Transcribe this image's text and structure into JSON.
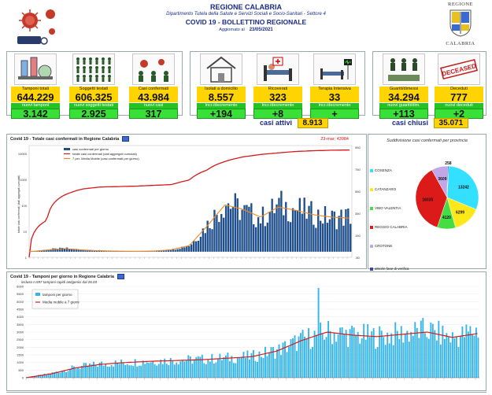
{
  "header": {
    "region": "REGIONE CALABRIA",
    "department": "Dipartimento Tutela della Salute e Servizi Sociali e Socio-Sanitari - Settore 4",
    "bulletin": "COVID 19 - BOLLETTINO REGIONALE",
    "updated_label": "Aggiornato al",
    "updated_date": "23/05/2021",
    "logo_line1": "REGIONE",
    "logo_line2": "CALABRIA"
  },
  "kpis": [
    {
      "label": "Tamponi totali",
      "value": "644.229",
      "delta_label": "nuovi tamponi",
      "delta_value": "3.142",
      "icon": "lab-test-icon"
    },
    {
      "label": "Soggetti testati",
      "value": "606.325",
      "delta_label": "nuovi soggetti testati",
      "delta_value": "2.925",
      "icon": "people-grid-icon"
    },
    {
      "label": "Casi confermati",
      "value": "43.984",
      "delta_label": "nuovi casi",
      "delta_value": "317",
      "icon": "virus-people-icon"
    },
    {
      "label": "Isolati a domicilio",
      "value": "8.557",
      "delta_label": "Incr./decremento",
      "delta_value": "+194",
      "icon": "house-icon"
    },
    {
      "label": "Ricoverati",
      "value": "323",
      "delta_label": "Incr./decremento",
      "delta_value": "+8",
      "icon": "hospital-bed-icon"
    },
    {
      "label": "Terapia Intensiva",
      "value": "33",
      "delta_label": "Incr./decremento",
      "delta_value": "+",
      "icon": "icu-icon"
    },
    {
      "label": "Guariti/dimessi",
      "value": "34.294",
      "delta_label": "nuovi guariti/dim.",
      "delta_value": "+113",
      "icon": "recovered-icon"
    },
    {
      "label": "Deceduti",
      "value": "777",
      "delta_label": "nuovi deceduti",
      "delta_value": "+2",
      "icon": "deceased-stamp-icon"
    }
  ],
  "deceased_stamp": "DECEASED",
  "totals": {
    "active_label": "casi attivi",
    "active_value": "8.913",
    "closed_label": "casi chiusi",
    "closed_value": "35.071"
  },
  "colors": {
    "yellow": "#ffd400",
    "green": "#38e038",
    "bar_blue": "#1f4e8c",
    "cumulative_red": "#d41a1a",
    "moving_avg_orange": "#f08a24",
    "tests_blue": "#34b4e8"
  },
  "chart_data": [
    {
      "type": "bar",
      "title": "Covid 19 - Totale casi confermati in Regione Calabria",
      "annotation": "23-mar; 43984",
      "legend": [
        "casi confermati per giorno",
        "totale casi confermati (dati aggregati cumulati)",
        "7 per. Media Mobile (casi confermati per giorno)"
      ],
      "ylabel": "totale casi confermati (dati aggregati cumulati)",
      "y_scale": "log",
      "left_ticks": [
        "10000",
        "1000",
        "100",
        "10",
        "1"
      ],
      "right_ticks": [
        "950",
        "750",
        "550",
        "350",
        "150",
        "-50"
      ],
      "series": [
        {
          "name": "totale casi confermati (dati aggregati cumulati)",
          "type": "line",
          "values": [
            1,
            40,
            500,
            900,
            1100,
            1150,
            1200,
            1300,
            1400,
            2200,
            6000,
            14000,
            22000,
            28000,
            33000,
            38000,
            41000,
            43000,
            43984
          ]
        },
        {
          "name": "casi confermati per giorno",
          "type": "bar",
          "values": [
            0,
            20,
            30,
            15,
            10,
            5,
            3,
            5,
            20,
            60,
            250,
            450,
            360,
            300,
            420,
            380,
            330,
            300,
            317
          ]
        },
        {
          "name": "7 per. Media Mobile (casi confermati per giorno)",
          "type": "line",
          "values": [
            0,
            15,
            28,
            16,
            9,
            5,
            4,
            6,
            18,
            55,
            230,
            420,
            380,
            310,
            400,
            370,
            330,
            310,
            300
          ]
        }
      ]
    },
    {
      "type": "pie",
      "title": "Suddivisione casi confermati per provincia",
      "categories": [
        "COSENZA",
        "CATANZARO",
        "VIBO VALENTIA",
        "REGGIO CALABRIA",
        "CROTONE",
        "altro/in fase di verifica (altra Regione/Stato Estero e sbarchi)"
      ],
      "values": [
        13242,
        6299,
        4120,
        16035,
        3609,
        258
      ],
      "slice_colors": [
        "#33e0ff",
        "#ffe81a",
        "#44dd44",
        "#dd1a1a",
        "#c0a8e8",
        "#3a4a9a"
      ]
    },
    {
      "type": "bar",
      "title": "Covid 19 - Tamponi per giorno in Regione Calabria",
      "subtitle": "incluso n.597 tamponi rapidi antigenici dal 26.03",
      "legend": [
        "tamponi per giorno",
        "Media mobile a 7 giorni"
      ],
      "y_ticks": [
        "6000",
        "5500",
        "5000",
        "4500",
        "4000",
        "3500",
        "3000",
        "2500",
        "2000",
        "1500",
        "1000",
        "500",
        "0"
      ],
      "ylim": [
        0,
        6000
      ],
      "series": [
        {
          "name": "tamponi per giorno",
          "type": "bar",
          "values": [
            0,
            300,
            700,
            900,
            1000,
            1100,
            1150,
            1200,
            1300,
            1400,
            1800,
            2500,
            3000,
            2800,
            2700,
            2900,
            3100,
            2600,
            3142
          ]
        },
        {
          "name": "Media mobile a 7 giorni",
          "type": "line",
          "values": [
            0,
            250,
            650,
            880,
            1000,
            1080,
            1130,
            1180,
            1280,
            1380,
            1750,
            2450,
            3000,
            2800,
            2700,
            2850,
            3000,
            2650,
            2900
          ]
        }
      ]
    }
  ]
}
